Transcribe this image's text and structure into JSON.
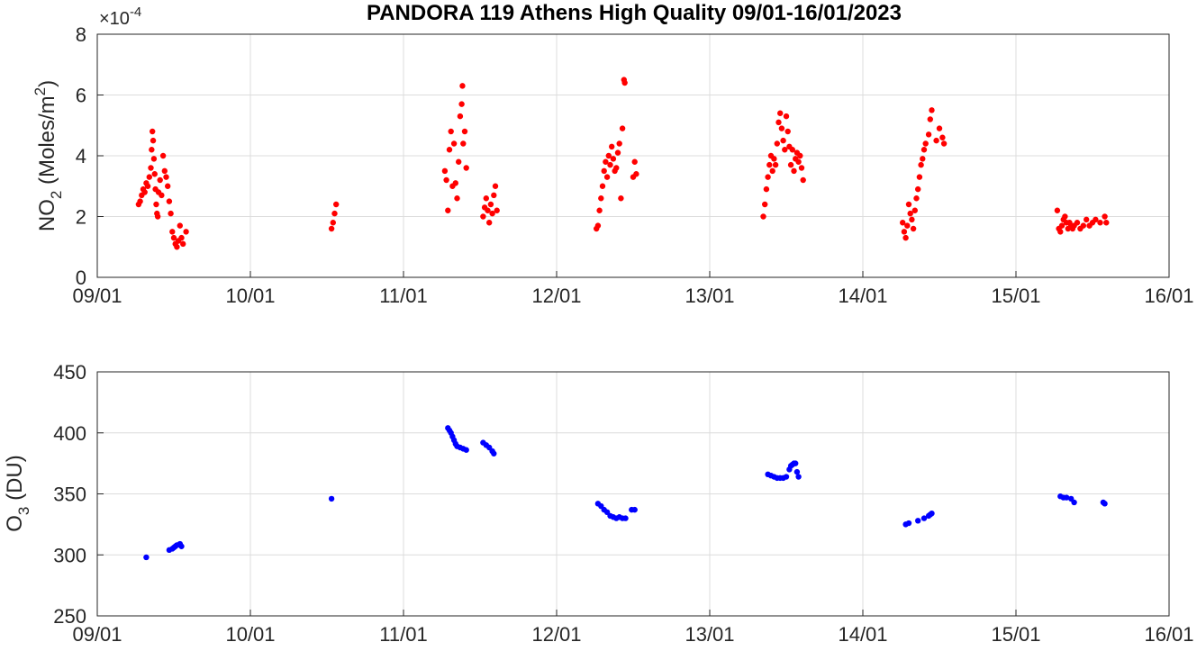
{
  "figure_title": "PANDORA 119 Athens High Quality 09/01-16/01/2023",
  "chart_data": [
    {
      "type": "scatter",
      "ylabel": {
        "base": "NO",
        "sub": "2",
        "unit_pre": " (Moles/m",
        "sup": "2",
        "unit_post": ")"
      },
      "multiplier": {
        "prefix": "×10",
        "exponent": "-4"
      },
      "xlim": [
        "09/01",
        "16/01"
      ],
      "xticks": [
        "09/01",
        "10/01",
        "11/01",
        "12/01",
        "13/01",
        "14/01",
        "15/01",
        "16/01"
      ],
      "ylim": [
        0,
        8
      ],
      "yticks": [
        "0",
        "2",
        "4",
        "6",
        "8"
      ],
      "yscale": 0.0001,
      "grid": true,
      "color": "#ff0000",
      "x_unit": "days since 09/01/2023",
      "points": [
        [
          0.27,
          2.4
        ],
        [
          0.28,
          2.5
        ],
        [
          0.29,
          2.7
        ],
        [
          0.3,
          2.9
        ],
        [
          0.31,
          2.8
        ],
        [
          0.32,
          3.1
        ],
        [
          0.33,
          3.0
        ],
        [
          0.34,
          3.3
        ],
        [
          0.35,
          3.6
        ],
        [
          0.355,
          4.2
        ],
        [
          0.36,
          4.8
        ],
        [
          0.365,
          4.5
        ],
        [
          0.37,
          3.9
        ],
        [
          0.375,
          3.4
        ],
        [
          0.38,
          2.9
        ],
        [
          0.385,
          2.4
        ],
        [
          0.39,
          2.1
        ],
        [
          0.395,
          2.0
        ],
        [
          0.4,
          2.8
        ],
        [
          0.41,
          3.2
        ],
        [
          0.42,
          2.7
        ],
        [
          0.43,
          4.0
        ],
        [
          0.44,
          3.5
        ],
        [
          0.45,
          3.3
        ],
        [
          0.46,
          3.0
        ],
        [
          0.47,
          2.5
        ],
        [
          0.48,
          2.1
        ],
        [
          0.49,
          1.5
        ],
        [
          0.5,
          1.3
        ],
        [
          0.51,
          1.1
        ],
        [
          0.52,
          1.0
        ],
        [
          0.53,
          1.2
        ],
        [
          0.54,
          1.7
        ],
        [
          0.55,
          1.3
        ],
        [
          0.56,
          1.1
        ],
        [
          0.58,
          1.5
        ],
        [
          1.53,
          1.6
        ],
        [
          1.54,
          1.8
        ],
        [
          1.55,
          2.1
        ],
        [
          1.56,
          2.4
        ],
        [
          2.27,
          3.5
        ],
        [
          2.28,
          3.2
        ],
        [
          2.29,
          2.2
        ],
        [
          2.3,
          4.2
        ],
        [
          2.31,
          4.8
        ],
        [
          2.32,
          3.0
        ],
        [
          2.33,
          4.4
        ],
        [
          2.34,
          3.1
        ],
        [
          2.35,
          2.6
        ],
        [
          2.36,
          3.8
        ],
        [
          2.37,
          5.3
        ],
        [
          2.38,
          5.7
        ],
        [
          2.385,
          6.3
        ],
        [
          2.39,
          4.4
        ],
        [
          2.4,
          4.8
        ],
        [
          2.41,
          3.6
        ],
        [
          2.52,
          2.0
        ],
        [
          2.53,
          2.3
        ],
        [
          2.54,
          2.6
        ],
        [
          2.55,
          2.2
        ],
        [
          2.56,
          1.8
        ],
        [
          2.57,
          2.4
        ],
        [
          2.58,
          2.1
        ],
        [
          2.59,
          2.7
        ],
        [
          2.6,
          3.0
        ],
        [
          2.61,
          2.2
        ],
        [
          3.26,
          1.6
        ],
        [
          3.27,
          1.7
        ],
        [
          3.28,
          2.2
        ],
        [
          3.29,
          2.6
        ],
        [
          3.3,
          3.0
        ],
        [
          3.31,
          3.5
        ],
        [
          3.32,
          3.8
        ],
        [
          3.33,
          3.3
        ],
        [
          3.34,
          4.0
        ],
        [
          3.35,
          3.7
        ],
        [
          3.36,
          4.3
        ],
        [
          3.37,
          3.9
        ],
        [
          3.38,
          3.5
        ],
        [
          3.39,
          3.6
        ],
        [
          3.4,
          4.1
        ],
        [
          3.41,
          4.4
        ],
        [
          3.42,
          2.6
        ],
        [
          3.43,
          4.9
        ],
        [
          3.44,
          6.5
        ],
        [
          3.445,
          6.4
        ],
        [
          3.5,
          3.3
        ],
        [
          3.51,
          3.8
        ],
        [
          3.52,
          3.4
        ],
        [
          4.35,
          2.0
        ],
        [
          4.36,
          2.4
        ],
        [
          4.37,
          2.9
        ],
        [
          4.38,
          3.3
        ],
        [
          4.39,
          3.7
        ],
        [
          4.4,
          4.0
        ],
        [
          4.41,
          3.5
        ],
        [
          4.42,
          3.9
        ],
        [
          4.43,
          3.7
        ],
        [
          4.44,
          4.4
        ],
        [
          4.45,
          5.1
        ],
        [
          4.46,
          5.4
        ],
        [
          4.47,
          4.9
        ],
        [
          4.48,
          4.5
        ],
        [
          4.49,
          4.2
        ],
        [
          4.5,
          5.3
        ],
        [
          4.51,
          4.8
        ],
        [
          4.52,
          4.3
        ],
        [
          4.53,
          3.7
        ],
        [
          4.54,
          4.2
        ],
        [
          4.55,
          3.5
        ],
        [
          4.56,
          3.9
        ],
        [
          4.57,
          4.1
        ],
        [
          4.58,
          3.8
        ],
        [
          4.59,
          4.0
        ],
        [
          4.6,
          3.6
        ],
        [
          4.61,
          3.2
        ],
        [
          5.26,
          1.8
        ],
        [
          5.27,
          1.5
        ],
        [
          5.28,
          1.3
        ],
        [
          5.29,
          1.7
        ],
        [
          5.3,
          2.4
        ],
        [
          5.31,
          2.1
        ],
        [
          5.32,
          1.9
        ],
        [
          5.33,
          1.6
        ],
        [
          5.34,
          2.2
        ],
        [
          5.35,
          2.6
        ],
        [
          5.36,
          2.9
        ],
        [
          5.37,
          3.3
        ],
        [
          5.38,
          3.7
        ],
        [
          5.39,
          3.9
        ],
        [
          5.4,
          4.2
        ],
        [
          5.41,
          4.4
        ],
        [
          5.43,
          4.7
        ],
        [
          5.44,
          5.2
        ],
        [
          5.45,
          5.5
        ],
        [
          5.48,
          4.5
        ],
        [
          5.5,
          4.9
        ],
        [
          5.52,
          4.6
        ],
        [
          5.53,
          4.4
        ],
        [
          6.27,
          2.2
        ],
        [
          6.28,
          1.6
        ],
        [
          6.29,
          1.5
        ],
        [
          6.3,
          1.7
        ],
        [
          6.31,
          1.9
        ],
        [
          6.32,
          2.0
        ],
        [
          6.33,
          1.8
        ],
        [
          6.34,
          1.6
        ],
        [
          6.35,
          1.8
        ],
        [
          6.36,
          1.7
        ],
        [
          6.37,
          1.6
        ],
        [
          6.38,
          1.7
        ],
        [
          6.4,
          1.8
        ],
        [
          6.42,
          1.6
        ],
        [
          6.44,
          1.7
        ],
        [
          6.46,
          1.9
        ],
        [
          6.48,
          1.7
        ],
        [
          6.5,
          1.8
        ],
        [
          6.52,
          1.9
        ],
        [
          6.55,
          1.8
        ],
        [
          6.58,
          2.0
        ],
        [
          6.59,
          1.8
        ]
      ]
    },
    {
      "type": "scatter",
      "ylabel": {
        "base": "O",
        "sub": "3",
        "unit_pre": " (DU)",
        "sup": "",
        "unit_post": ""
      },
      "xlim": [
        "09/01",
        "16/01"
      ],
      "xticks": [
        "09/01",
        "10/01",
        "11/01",
        "12/01",
        "13/01",
        "14/01",
        "15/01",
        "16/01"
      ],
      "ylim": [
        250,
        450
      ],
      "yticks": [
        "250",
        "300",
        "350",
        "400",
        "450"
      ],
      "grid": true,
      "color": "#0000ff",
      "x_unit": "days since 09/01/2023",
      "points": [
        [
          0.32,
          298
        ],
        [
          0.47,
          304
        ],
        [
          0.49,
          305
        ],
        [
          0.5,
          306
        ],
        [
          0.51,
          307
        ],
        [
          0.52,
          308
        ],
        [
          0.54,
          309
        ],
        [
          0.55,
          307
        ],
        [
          1.53,
          346
        ],
        [
          2.29,
          404
        ],
        [
          2.3,
          402
        ],
        [
          2.31,
          400
        ],
        [
          2.32,
          397
        ],
        [
          2.33,
          394
        ],
        [
          2.34,
          391
        ],
        [
          2.35,
          389
        ],
        [
          2.37,
          388
        ],
        [
          2.39,
          387
        ],
        [
          2.41,
          386
        ],
        [
          2.52,
          392
        ],
        [
          2.54,
          390
        ],
        [
          2.56,
          388
        ],
        [
          2.58,
          385
        ],
        [
          2.59,
          383
        ],
        [
          3.27,
          342
        ],
        [
          3.29,
          340
        ],
        [
          3.31,
          337
        ],
        [
          3.33,
          335
        ],
        [
          3.35,
          332
        ],
        [
          3.37,
          331
        ],
        [
          3.39,
          330
        ],
        [
          3.41,
          331
        ],
        [
          3.43,
          330
        ],
        [
          3.45,
          330
        ],
        [
          3.49,
          337
        ],
        [
          3.51,
          337
        ],
        [
          4.38,
          366
        ],
        [
          4.4,
          365
        ],
        [
          4.42,
          364
        ],
        [
          4.44,
          363
        ],
        [
          4.46,
          363
        ],
        [
          4.48,
          363
        ],
        [
          4.5,
          364
        ],
        [
          4.52,
          370
        ],
        [
          4.53,
          373
        ],
        [
          4.54,
          374
        ],
        [
          4.55,
          375
        ],
        [
          4.56,
          375
        ],
        [
          4.57,
          368
        ],
        [
          4.58,
          364
        ],
        [
          5.28,
          325
        ],
        [
          5.3,
          326
        ],
        [
          5.36,
          328
        ],
        [
          5.4,
          330
        ],
        [
          5.43,
          332
        ],
        [
          5.44,
          333
        ],
        [
          5.45,
          334
        ],
        [
          6.29,
          348
        ],
        [
          6.31,
          347
        ],
        [
          6.33,
          347
        ],
        [
          6.36,
          346
        ],
        [
          6.38,
          343
        ],
        [
          6.57,
          343
        ],
        [
          6.58,
          342
        ]
      ]
    }
  ]
}
